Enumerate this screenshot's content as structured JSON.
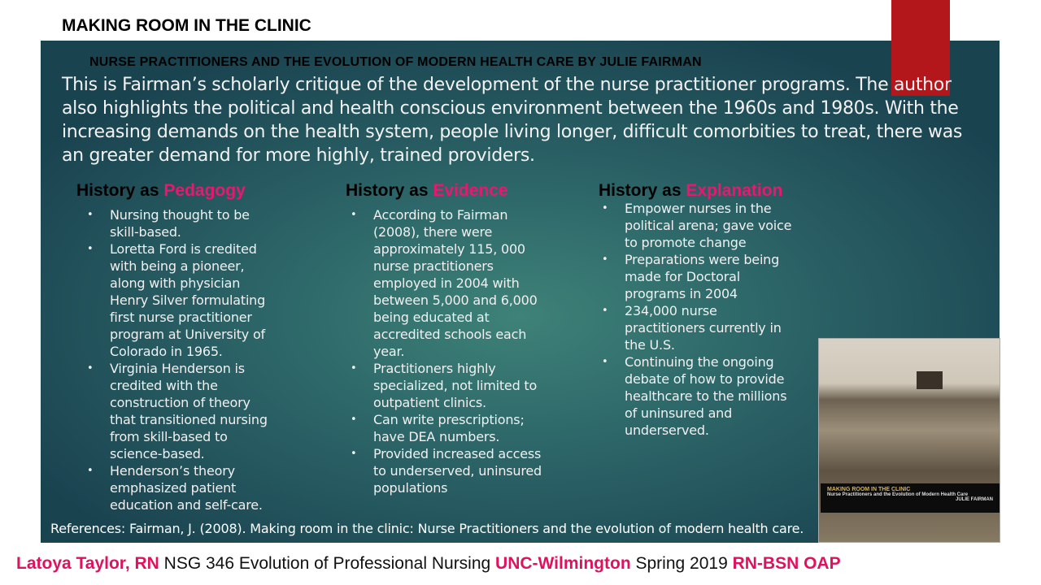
{
  "title": "MAKING ROOM IN THE CLINIC",
  "subtitle": "NURSE PRACTITIONERS AND THE EVOLUTION OF MODERN HEALTH CARE BY JULIE FAIRMAN",
  "intro": "This is Fairman’s scholarly critique of the development of the nurse practitioner programs.  The author also highlights the political and health conscious environment between the 1960s and 1980s.  With the increasing demands on the health system, people living longer, difficult comorbities to treat, there was an greater demand for more highly, trained providers.",
  "columns": [
    {
      "prefix": "History as ",
      "accent": "Pedagogy",
      "items": [
        "Nursing thought to be skill-based.",
        "Loretta Ford is credited with being a pioneer, along with physician Henry Silver formulating first nurse practitioner program at University of Colorado in 1965.",
        "Virginia Henderson is credited with the construction of theory that transitioned nursing from skill-based to science-based.",
        "Henderson’s theory emphasized patient education and self-care."
      ]
    },
    {
      "prefix": "History as ",
      "accent": "Evidence",
      "items": [
        "According to Fairman (2008),  there were approximately 115, 000 nurse practitioners employed in 2004 with between 5,000 and 6,000 being educated at accredited schools each year.",
        "Practitioners highly specialized, not limited to outpatient clinics.",
        "Can write prescriptions; have DEA numbers.",
        "Provided increased access to underserved, uninsured populations"
      ]
    },
    {
      "prefix": "History as ",
      "accent": "Explanation",
      "items": [
        "Empower nurses in the political arena; gave voice to promote change",
        "Preparations were being made for Doctoral programs in 2004",
        "234,000 nurse practitioners currently in the U.S.",
        "Continuing the ongoing debate of how to provide healthcare to the millions of uninsured and underserved."
      ]
    }
  ],
  "references": "References: Fairman, J. (2008). Making room in the clinic: Nurse Practitioners and the evolution of modern health care.",
  "cover": {
    "title": "MAKING ROOM IN THE CLINIC",
    "subtitle": "Nurse Practitioners and the Evolution of Modern Health Care",
    "author": "JULIE FAIRMAN"
  },
  "footer": {
    "name": "Latoya Taylor, RN",
    "course": " NSG 346 Evolution of Professional Nursing ",
    "school": "UNC-Wilmington",
    "term": " Spring 2019 ",
    "program": "RN-BSN OAP"
  },
  "colors": {
    "accent": "#e8186f",
    "red_bar": "#b3161b",
    "panel": "#2c6568"
  }
}
